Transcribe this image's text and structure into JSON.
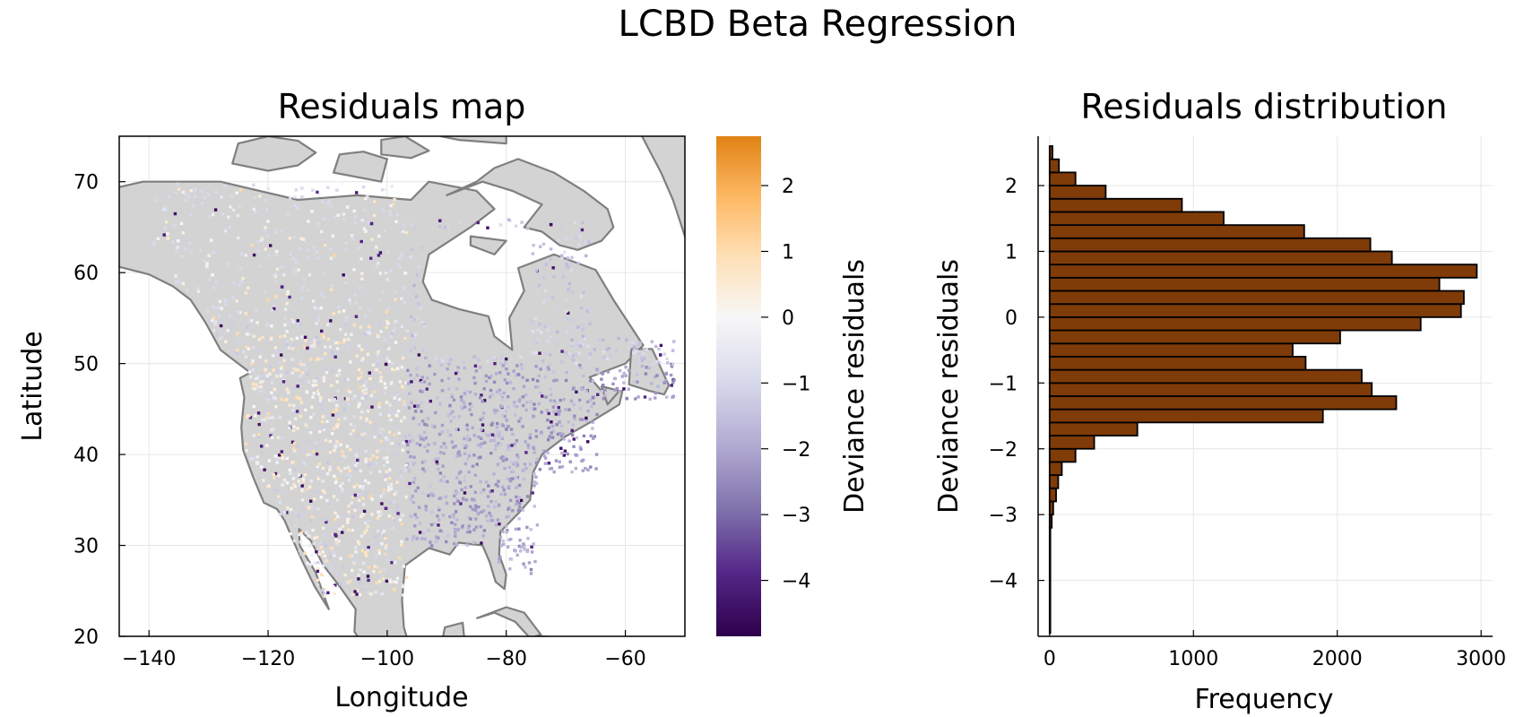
{
  "suptitle": "LCBD Beta Regression",
  "chart_data": [
    {
      "type": "heatmap",
      "title": "Residuals map",
      "xlabel": "Longitude",
      "ylabel": "Latitude",
      "xlim": [
        -145,
        -50
      ],
      "ylim": [
        20,
        75
      ],
      "xticks": [
        -140,
        -120,
        -100,
        -80,
        -60
      ],
      "yticks": [
        20,
        30,
        40,
        50,
        60,
        70
      ],
      "grid": true,
      "colorbar": {
        "label": "Deviance residuals",
        "range": [
          -4.85,
          2.75
        ],
        "ticks": [
          -4,
          -3,
          -2,
          -1,
          0,
          1,
          2
        ],
        "colors": [
          "#2d004b",
          "#542788",
          "#8073ac",
          "#b2abd2",
          "#d8daeb",
          "#f7f7f7",
          "#fee0b6",
          "#fdb863",
          "#e08214"
        ]
      },
      "land_color": "#d3d3d3",
      "coast_color": "#7f7f7f"
    },
    {
      "type": "bar",
      "orientation": "horizontal",
      "title": "Residuals distribution",
      "xlabel": "Frequency",
      "ylabel": "Deviance residuals",
      "xlim": [
        -80,
        3080
      ],
      "ylim": [
        -4.85,
        2.75
      ],
      "xticks": [
        0,
        1000,
        2000,
        3000
      ],
      "yticks": [
        -4,
        -3,
        -2,
        -1,
        0,
        1,
        2
      ],
      "grid": true,
      "bar_color": "#7f3b08",
      "bins": [
        {
          "lo": -4.8,
          "hi": -3.2,
          "count": 3
        },
        {
          "lo": -3.2,
          "hi": -3.0,
          "count": 15
        },
        {
          "lo": -3.0,
          "hi": -2.8,
          "count": 25
        },
        {
          "lo": -2.8,
          "hi": -2.6,
          "count": 45
        },
        {
          "lo": -2.6,
          "hi": -2.4,
          "count": 60
        },
        {
          "lo": -2.4,
          "hi": -2.2,
          "count": 85
        },
        {
          "lo": -2.2,
          "hi": -2.0,
          "count": 180
        },
        {
          "lo": -2.0,
          "hi": -1.8,
          "count": 310
        },
        {
          "lo": -1.8,
          "hi": -1.6,
          "count": 610
        },
        {
          "lo": -1.6,
          "hi": -1.4,
          "count": 1900
        },
        {
          "lo": -1.4,
          "hi": -1.2,
          "count": 2410
        },
        {
          "lo": -1.2,
          "hi": -1.0,
          "count": 2240
        },
        {
          "lo": -1.0,
          "hi": -0.8,
          "count": 2170
        },
        {
          "lo": -0.8,
          "hi": -0.6,
          "count": 1780
        },
        {
          "lo": -0.6,
          "hi": -0.4,
          "count": 1690
        },
        {
          "lo": -0.4,
          "hi": -0.2,
          "count": 2020
        },
        {
          "lo": -0.2,
          "hi": 0.0,
          "count": 2580
        },
        {
          "lo": 0.0,
          "hi": 0.2,
          "count": 2860
        },
        {
          "lo": 0.2,
          "hi": 0.4,
          "count": 2880
        },
        {
          "lo": 0.4,
          "hi": 0.6,
          "count": 2710
        },
        {
          "lo": 0.6,
          "hi": 0.8,
          "count": 2970
        },
        {
          "lo": 0.8,
          "hi": 1.0,
          "count": 2380
        },
        {
          "lo": 1.0,
          "hi": 1.2,
          "count": 2230
        },
        {
          "lo": 1.2,
          "hi": 1.4,
          "count": 1770
        },
        {
          "lo": 1.4,
          "hi": 1.6,
          "count": 1210
        },
        {
          "lo": 1.6,
          "hi": 1.8,
          "count": 920
        },
        {
          "lo": 1.8,
          "hi": 2.0,
          "count": 390
        },
        {
          "lo": 2.0,
          "hi": 2.2,
          "count": 180
        },
        {
          "lo": 2.2,
          "hi": 2.4,
          "count": 65
        },
        {
          "lo": 2.4,
          "hi": 2.6,
          "count": 20
        }
      ]
    }
  ]
}
